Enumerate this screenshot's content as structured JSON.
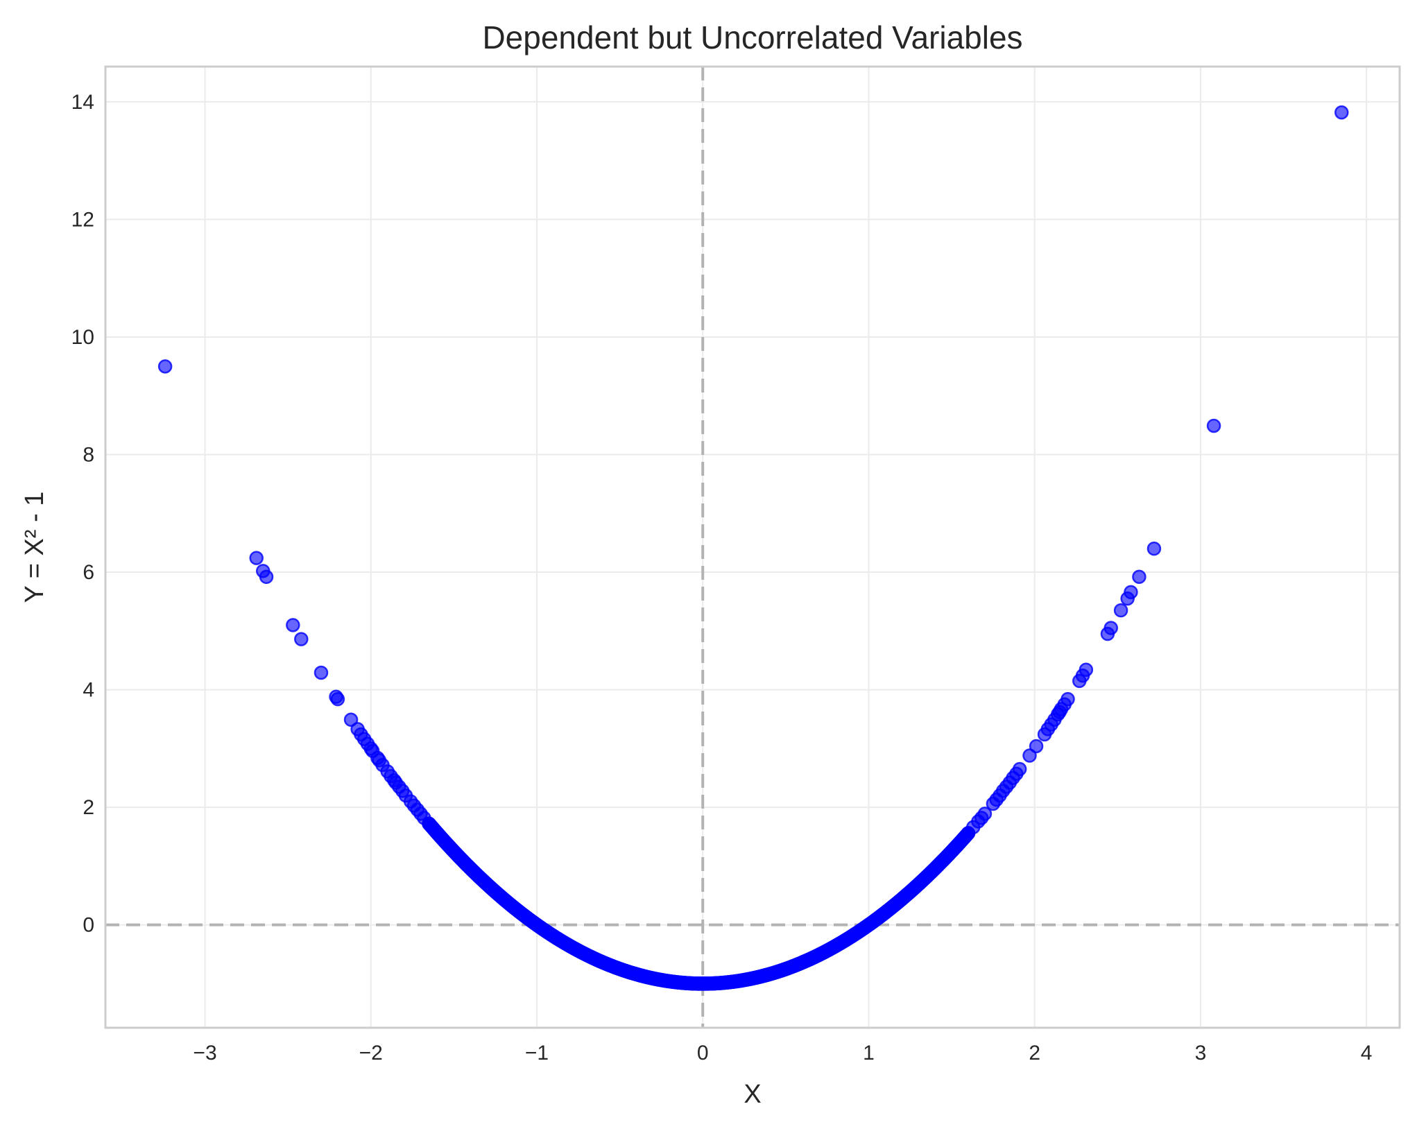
{
  "chart_data": {
    "type": "scatter",
    "title": "Dependent but Uncorrelated Variables",
    "xlabel": "X",
    "ylabel": "Y = X² - 1",
    "xlim": [
      -3.6,
      4.2
    ],
    "ylim": [
      -1.75,
      14.6
    ],
    "xticks": [
      -3,
      -2,
      -1,
      0,
      1,
      2,
      3,
      4
    ],
    "xtick_labels": [
      "−3",
      "−2",
      "−1",
      "0",
      "1",
      "2",
      "3",
      "4"
    ],
    "yticks": [
      0,
      2,
      4,
      6,
      8,
      10,
      12,
      14
    ],
    "ytick_labels": [
      "0",
      "2",
      "4",
      "6",
      "8",
      "10",
      "12",
      "14"
    ],
    "grid": true,
    "reference_lines": {
      "x": 0,
      "y": 0,
      "style": "dashed"
    },
    "colors": {
      "points": "#0000ff",
      "reference": "#b3b3b3",
      "grid": "#ebebeb",
      "frame": "#cccccc"
    },
    "series": [
      {
        "points": [
          [
            -3.24,
            9.5
          ],
          [
            -2.69,
            6.24
          ],
          [
            -2.65,
            6.02
          ],
          [
            -2.63,
            5.92
          ],
          [
            -2.47,
            5.1
          ],
          [
            -2.42,
            4.86
          ],
          [
            -2.3,
            4.29
          ],
          [
            -2.21,
            3.88
          ],
          [
            -2.2,
            3.84
          ],
          [
            -2.12,
            3.49
          ],
          [
            -2.08,
            3.33
          ],
          [
            -2.06,
            3.24
          ],
          [
            -2.04,
            3.16
          ],
          [
            -2.02,
            3.08
          ],
          [
            -1.99,
            2.96
          ],
          [
            -1.96,
            2.84
          ],
          [
            -1.93,
            2.72
          ],
          [
            -1.9,
            2.61
          ],
          [
            -1.88,
            2.53
          ],
          [
            -1.86,
            2.46
          ],
          [
            -1.83,
            2.35
          ],
          [
            -1.81,
            2.28
          ],
          [
            -1.79,
            2.2
          ],
          [
            -1.76,
            2.1
          ],
          [
            -1.74,
            2.03
          ],
          [
            -1.72,
            1.96
          ],
          [
            -1.7,
            1.89
          ],
          [
            -1.68,
            1.82
          ],
          [
            -1.65,
            1.72
          ],
          [
            -2.0,
            3.0
          ],
          [
            -1.95,
            2.8
          ],
          [
            -1.85,
            2.42
          ],
          [
            2.72,
            6.4
          ],
          [
            2.63,
            5.92
          ],
          [
            2.58,
            5.66
          ],
          [
            2.56,
            5.55
          ],
          [
            2.52,
            5.35
          ],
          [
            2.46,
            5.05
          ],
          [
            2.44,
            4.95
          ],
          [
            2.31,
            4.34
          ],
          [
            2.29,
            4.24
          ],
          [
            2.27,
            4.15
          ],
          [
            2.2,
            3.84
          ],
          [
            2.18,
            3.75
          ],
          [
            2.16,
            3.67
          ],
          [
            2.15,
            3.62
          ],
          [
            2.14,
            3.58
          ],
          [
            2.12,
            3.49
          ],
          [
            2.1,
            3.41
          ],
          [
            2.08,
            3.33
          ],
          [
            2.06,
            3.24
          ],
          [
            2.01,
            3.04
          ],
          [
            1.97,
            2.88
          ],
          [
            1.91,
            2.65
          ],
          [
            1.89,
            2.57
          ],
          [
            1.87,
            2.5
          ],
          [
            1.85,
            2.42
          ],
          [
            1.83,
            2.35
          ],
          [
            1.81,
            2.28
          ],
          [
            1.79,
            2.2
          ],
          [
            1.77,
            2.13
          ],
          [
            1.75,
            2.06
          ],
          [
            1.7,
            1.89
          ],
          [
            1.68,
            1.82
          ],
          [
            1.66,
            1.76
          ],
          [
            1.63,
            1.66
          ],
          [
            1.6,
            1.56
          ],
          [
            3.08,
            8.49
          ],
          [
            3.85,
            13.82
          ]
        ],
        "dense_curve": {
          "formula": "y = x^2 - 1",
          "x_range": [
            -1.65,
            1.6
          ],
          "count": 900
        }
      }
    ]
  }
}
